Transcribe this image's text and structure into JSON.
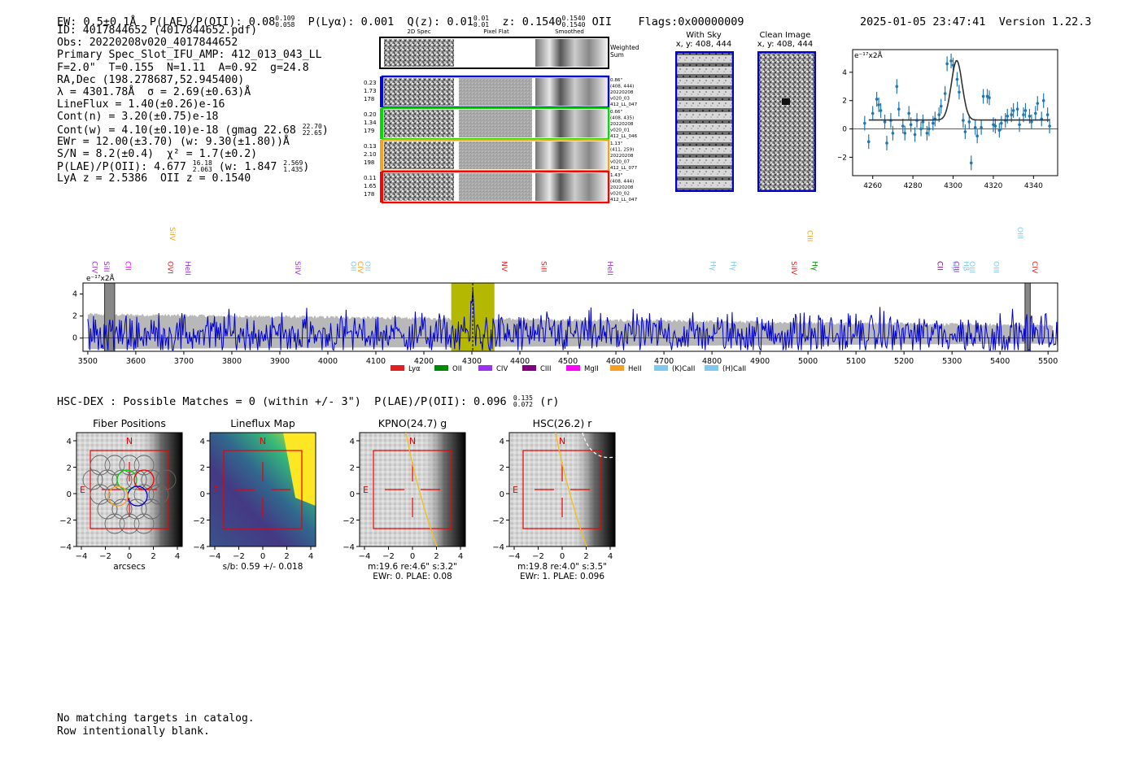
{
  "header": {
    "ew": "EW: 0.5±0.1Å",
    "plae_label": "P(LAE)/P(OII): 0.08",
    "plae_hi": "0.109",
    "plae_lo": "0.058",
    "plya": "P(Lyα): 0.001",
    "qz_label": "Q(z): 0.01",
    "qz_hi": "0.01",
    "qz_lo": "0.01",
    "z_label": "z: 0.1540",
    "z_hi": "0.1540",
    "z_lo": "0.1540",
    "z_line": "OII",
    "flags": "Flags:0x00000009",
    "timestamp": "2025-01-05 23:47:41",
    "version": "Version 1.22.3"
  },
  "info": {
    "id": "ID: 4017844652 (4017844652.pdf)",
    "obs": "Obs: 20220208v020_4017844652",
    "primary": "Primary Spec_Slot_IFU_AMP: 412_013_043_LL",
    "fwhm": "F=2.0\"  T=0.155  N=1.11  A=0.92  g=24.8",
    "radec": "RA,Dec (198.278687,52.945400)",
    "lambda": "λ = 4301.78Å  σ = 2.69(±0.63)Å",
    "lineflux": "LineFlux = 1.40(±0.26)e-16",
    "contn": "Cont(n) = 3.20(±0.75)e-18",
    "contw": "Cont(w) = 4.10(±0.10)e-18 (gmag 22.68",
    "gmag_hi": "22.70",
    "gmag_lo": "22.65",
    "contw_end": ")",
    "ewr": "EWr = 12.00(±3.70) (w: 9.30(±1.80))Å",
    "sn": "S/N = 8.2(±0.4)  χ² = 1.7(±0.2)",
    "plae": "P(LAE)/P(OII): 4.677",
    "plae_hi": "16.18",
    "plae_lo": "2.063",
    "plae_w": "(w: 1.847",
    "plae_w_hi": "2.569",
    "plae_w_lo": "1.435",
    "plae_w_end": ")",
    "lyaz": "LyA z = 2.5386  OII z = 0.1540"
  },
  "cutouts": {
    "col_labels": [
      "2D Spec",
      "Pixel Flat",
      "Smoothed"
    ],
    "weighted": "Weighted Sum",
    "rows": [
      {
        "w": [
          "0.23",
          "1.73",
          "178"
        ],
        "meta": [
          "0.86\"",
          "(408, 444)",
          "20220208",
          "v020_03",
          "412_LL_047"
        ],
        "color": "#0000ff"
      },
      {
        "w": [
          "0.20",
          "1.34",
          "179"
        ],
        "meta": [
          "0.66\"",
          "(408, 435)",
          "20220208",
          "v020_01",
          "412_LL_046"
        ],
        "color": "#00dd00"
      },
      {
        "w": [
          "0.13",
          "2.10",
          "198"
        ],
        "meta": [
          "1.13\"",
          "(411, 259)",
          "20220208",
          "v020_07",
          "412_LL_077"
        ],
        "color": "#f5a020"
      },
      {
        "w": [
          "0.11",
          "1.65",
          "178"
        ],
        "meta": [
          "1.43\"",
          "(408, 444)",
          "20220208",
          "v020_02",
          "412_LL_047"
        ],
        "color": "#ff0000"
      }
    ],
    "with_sky": "With Sky",
    "with_sky_xy": "x, y: 408, 444",
    "clean": "Clean Image",
    "clean_xy": "x, y: 408, 444"
  },
  "fit_plot": {
    "unit": "e⁻¹⁷x2Å",
    "xticks": [
      "4260",
      "4280",
      "4300",
      "4320",
      "4340"
    ],
    "yticks": [
      "4",
      "2",
      "0",
      "−2"
    ]
  },
  "spectrum": {
    "unit": "e⁻¹⁷x2Å",
    "xticks": [
      "3500",
      "3600",
      "3700",
      "3800",
      "3900",
      "4000",
      "4100",
      "4200",
      "4300",
      "4400",
      "4500",
      "4600",
      "4700",
      "4800",
      "4900",
      "5000",
      "5100",
      "5200",
      "5300",
      "5400",
      "5500"
    ],
    "yticks": [
      "4",
      "2",
      "0"
    ],
    "lines": [
      {
        "label": "CIV",
        "color": "#9933cc"
      },
      {
        "label": "SiII",
        "color": "#9933cc"
      },
      {
        "label": "CII",
        "color": "#ff00ff"
      },
      {
        "label": "SiIV",
        "color": "#f5a020"
      },
      {
        "label": "OVI",
        "color": "#e02020"
      },
      {
        "label": "HeII",
        "color": "#9933cc"
      },
      {
        "label": "SiIV",
        "color": "#9933cc"
      },
      {
        "label": "OII",
        "color": "#80c8f0"
      },
      {
        "label": "CIV",
        "color": "#f5a020"
      },
      {
        "label": "OII",
        "color": "#80c8f0"
      },
      {
        "label": "NV",
        "color": "#e02020"
      },
      {
        "label": "SiII",
        "color": "#e02020"
      },
      {
        "label": "HeII",
        "color": "#9933cc"
      },
      {
        "label": "Hγ",
        "color": "#80c8f0"
      },
      {
        "label": "Hγ",
        "color": "#80c8f0"
      },
      {
        "label": "SiIV",
        "color": "#e02020"
      },
      {
        "label": "CIII",
        "color": "#f5a020"
      },
      {
        "label": "Hγ",
        "color": "#008800"
      },
      {
        "label": "CII",
        "color": "#800080"
      },
      {
        "label": "Hβ",
        "color": "#80c8f0"
      },
      {
        "label": "CIII",
        "color": "#9933cc"
      },
      {
        "label": "Hβ",
        "color": "#80c8f0"
      },
      {
        "label": "OIII",
        "color": "#80c8f0"
      },
      {
        "label": "OIII",
        "color": "#80c8f0"
      },
      {
        "label": "OIII",
        "color": "#80c8f0"
      },
      {
        "label": "CIV",
        "color": "#e02020"
      }
    ],
    "legend": [
      {
        "label": "Lyα",
        "color": "#e02020"
      },
      {
        "label": "OII",
        "color": "#008800"
      },
      {
        "label": "CIV",
        "color": "#9933ee"
      },
      {
        "label": "CIII",
        "color": "#800080"
      },
      {
        "label": "MgII",
        "color": "#ff00ff"
      },
      {
        "label": "HeII",
        "color": "#f5a020"
      },
      {
        "label": "(K)CaII",
        "color": "#80c8f0"
      },
      {
        "label": "(H)CaII",
        "color": "#80c8f0"
      }
    ]
  },
  "hsc": {
    "label": "HSC-DEX : Possible Matches = 0 (within +/- 3\")  P(LAE)/P(OII): 0.096",
    "hi": "0.135",
    "lo": "0.072",
    "band": "(r)"
  },
  "panels": [
    {
      "title": "Fiber Positions",
      "below1": "arcsecs",
      "below2": ""
    },
    {
      "title": "Lineflux Map",
      "below1": "s/b: 0.59 +/- 0.018",
      "below2": ""
    },
    {
      "title": "KPNO(24.7) g",
      "below1": "m:19.6  re:4.6\"  s:3.2\"",
      "below2": "EWr: 0. PLAE: 0.08"
    },
    {
      "title": "HSC(26.2) r",
      "below1": "m:19.8  re:4.0\"  s:3.5\"",
      "below2": "EWr: 1. PLAE: 0.096"
    }
  ],
  "panel_ticks": {
    "x": [
      "−4",
      "−2",
      "0",
      "2",
      "4"
    ],
    "y": [
      "4",
      "2",
      "0",
      "−2",
      "−4"
    ],
    "n": "N",
    "e": "E"
  },
  "footer": [
    "No matching targets in catalog.",
    "Row intentionally blank."
  ],
  "chart_data": [
    {
      "type": "scatter",
      "title": "",
      "xlabel": "",
      "ylabel": "e⁻¹⁷x2Å",
      "xlim": [
        4250,
        4352
      ],
      "ylim": [
        -3.3,
        5.6
      ],
      "points": [
        [
          4256,
          0.4
        ],
        [
          4258,
          -0.9
        ],
        [
          4260,
          1.1
        ],
        [
          4262,
          2.1
        ],
        [
          4263,
          1.7
        ],
        [
          4264,
          1.3
        ],
        [
          4266,
          0.5
        ],
        [
          4267,
          -1.0
        ],
        [
          4269,
          0.6
        ],
        [
          4270,
          -0.3
        ],
        [
          4272,
          3.0
        ],
        [
          4273,
          1.4
        ],
        [
          4275,
          0.2
        ],
        [
          4276,
          -0.3
        ],
        [
          4278,
          1.1
        ],
        [
          4279,
          0.3
        ],
        [
          4281,
          -0.4
        ],
        [
          4282,
          0.6
        ],
        [
          4284,
          0.0
        ],
        [
          4285,
          0.5
        ],
        [
          4287,
          -0.3
        ],
        [
          4288,
          0.0
        ],
        [
          4290,
          0.4
        ],
        [
          4291,
          0.7
        ],
        [
          4293,
          1.0
        ],
        [
          4294,
          1.6
        ],
        [
          4296,
          2.5
        ],
        [
          4297,
          4.6
        ],
        [
          4299,
          4.8
        ],
        [
          4300,
          4.5
        ],
        [
          4302,
          3.5
        ],
        [
          4303,
          2.6
        ],
        [
          4305,
          0.6
        ],
        [
          4306,
          -0.2
        ],
        [
          4308,
          0.5
        ],
        [
          4309,
          -2.4
        ],
        [
          4311,
          0.1
        ],
        [
          4312,
          -0.5
        ],
        [
          4314,
          0.1
        ],
        [
          4315,
          2.3
        ],
        [
          4317,
          2.3
        ],
        [
          4318,
          2.2
        ],
        [
          4320,
          0.3
        ],
        [
          4321,
          0.2
        ],
        [
          4323,
          -0.1
        ],
        [
          4324,
          0.4
        ],
        [
          4326,
          0.6
        ],
        [
          4327,
          0.9
        ],
        [
          4329,
          1.0
        ],
        [
          4330,
          1.3
        ],
        [
          4332,
          1.4
        ],
        [
          4333,
          0.3
        ],
        [
          4335,
          1.0
        ],
        [
          4336,
          1.3
        ],
        [
          4338,
          0.9
        ],
        [
          4339,
          0.5
        ],
        [
          4341,
          1.1
        ],
        [
          4342,
          1.8
        ],
        [
          4344,
          0.7
        ],
        [
          4345,
          2.0
        ],
        [
          4347,
          1.0
        ],
        [
          4348,
          0.2
        ]
      ],
      "fit_continuum": 0.63,
      "fit_center": 4301.78,
      "fit_sigma": 2.69,
      "fit_amplitude": 4.2
    },
    {
      "type": "line",
      "title": "",
      "xlabel": "",
      "ylabel": "e⁻¹⁷x2Å",
      "xlim": [
        3490,
        5520
      ],
      "ylim": [
        -1.2,
        5.0
      ],
      "x_start": 3500,
      "x_step": 2,
      "series_color": "#0000cc",
      "seed": 4017844652,
      "noise_envelope": "gray",
      "highlight_band": [
        4257,
        4347
      ],
      "marker_line": 4301.78
    }
  ]
}
